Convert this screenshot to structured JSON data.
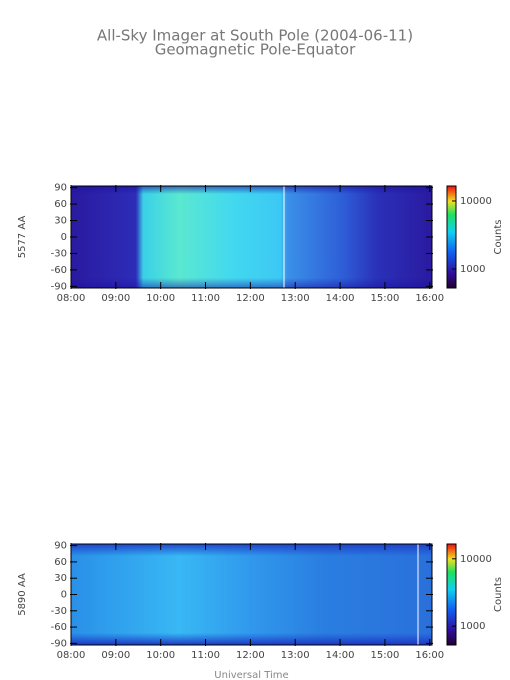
{
  "title": "All-Sky Imager at South Pole (2004-06-11)",
  "subtitle": "Geomagnetic Pole-Equator",
  "chart_data": [
    {
      "type": "heatmap",
      "ylabel": "5577 AA",
      "xlim": [
        8,
        16.05
      ],
      "xticks": [
        {
          "value": 8,
          "label": "08:00"
        },
        {
          "value": 9,
          "label": "09:00"
        },
        {
          "value": 10,
          "label": "10:00"
        },
        {
          "value": 11,
          "label": "11:00"
        },
        {
          "value": 12,
          "label": "12:00"
        },
        {
          "value": 13,
          "label": "13:00"
        },
        {
          "value": 14,
          "label": "14:00"
        },
        {
          "value": 15,
          "label": "15:00"
        },
        {
          "value": 16,
          "label": "16:00"
        }
      ],
      "ylim": [
        -93,
        93
      ],
      "yticks": [
        -90,
        -60,
        -30,
        0,
        30,
        60,
        90
      ],
      "colorbar": {
        "label": "Counts",
        "log": true,
        "lim": [
          525,
          16600
        ],
        "ticks": [
          1000,
          10000
        ]
      }
    },
    {
      "type": "heatmap",
      "ylabel": "5890 AA",
      "xlabel": "Universal Time",
      "xlim": [
        8,
        16.05
      ],
      "xticks": [
        {
          "value": 8,
          "label": "08:00"
        },
        {
          "value": 9,
          "label": "09:00"
        },
        {
          "value": 10,
          "label": "10:00"
        },
        {
          "value": 11,
          "label": "11:00"
        },
        {
          "value": 12,
          "label": "12:00"
        },
        {
          "value": 13,
          "label": "13:00"
        },
        {
          "value": 14,
          "label": "14:00"
        },
        {
          "value": 15,
          "label": "15:00"
        },
        {
          "value": 16,
          "label": "16:00"
        }
      ],
      "ylim": [
        -93,
        93
      ],
      "yticks": [
        -90,
        -60,
        -30,
        0,
        30,
        60,
        90
      ],
      "colorbar": {
        "label": "Counts",
        "log": true,
        "lim": [
          525,
          16600
        ],
        "ticks": [
          1000,
          10000
        ]
      }
    }
  ]
}
